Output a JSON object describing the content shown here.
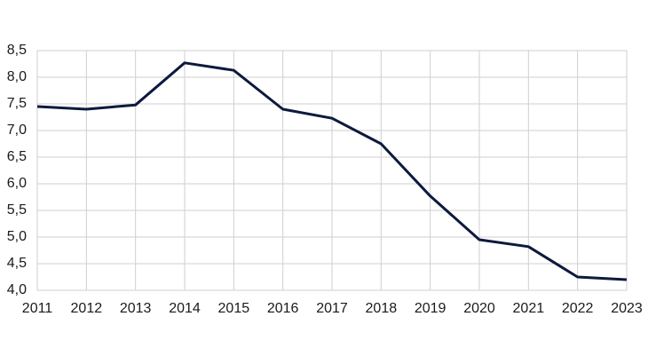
{
  "chart_data": {
    "type": "line",
    "x": [
      2011,
      2012,
      2013,
      2014,
      2015,
      2016,
      2017,
      2018,
      2019,
      2020,
      2021,
      2022,
      2023
    ],
    "values": [
      7.45,
      7.4,
      7.48,
      8.27,
      8.13,
      7.4,
      7.23,
      6.75,
      5.77,
      4.95,
      4.82,
      4.25,
      4.2
    ],
    "color": "#0d1a3d",
    "xlim": [
      2011,
      2023
    ],
    "xticks": [
      2011,
      2012,
      2013,
      2014,
      2015,
      2016,
      2017,
      2018,
      2019,
      2020,
      2021,
      2022,
      2023
    ],
    "ylim": [
      4.0,
      8.5
    ],
    "yticks": [
      {
        "value": 4.0,
        "label": "4,0"
      },
      {
        "value": 4.5,
        "label": "4,5"
      },
      {
        "value": 5.0,
        "label": "5,0"
      },
      {
        "value": 5.5,
        "label": "5,5"
      },
      {
        "value": 6.0,
        "label": "6,0"
      },
      {
        "value": 6.5,
        "label": "6,5"
      },
      {
        "value": 7.0,
        "label": "7,0"
      },
      {
        "value": 7.5,
        "label": "7,5"
      },
      {
        "value": 8.0,
        "label": "8,0"
      },
      {
        "value": 8.5,
        "label": "8,5"
      }
    ],
    "grid": true
  }
}
